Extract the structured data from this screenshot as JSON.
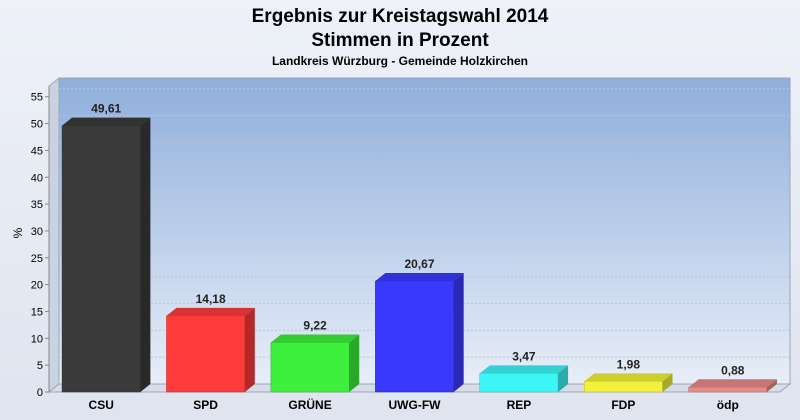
{
  "chart_data": {
    "type": "bar",
    "title": "Ergebnis zur Kreistagswahl 2014",
    "title2": "Stimmen in Prozent",
    "subtitle": "Landkreis Würzburg - Gemeinde Holzkirchen",
    "ylabel": "%",
    "xlabel": "",
    "ylim": [
      0,
      57
    ],
    "yticks": [
      0,
      5,
      10,
      15,
      20,
      25,
      30,
      35,
      40,
      45,
      50,
      55
    ],
    "grid": true,
    "categories": [
      "CSU",
      "SPD",
      "GRÜNE",
      "UWG-FW",
      "REP",
      "FDP",
      "ödp"
    ],
    "values": [
      49.61,
      14.18,
      9.22,
      20.67,
      3.47,
      1.98,
      0.88
    ],
    "value_labels": [
      "49,61",
      "14,18",
      "9,22",
      "20,67",
      "3,47",
      "1,98",
      "0,88"
    ],
    "colors": [
      "#3a3a3a",
      "#ff3b3b",
      "#3cf03c",
      "#3a3aff",
      "#3cf6f6",
      "#f2f23a",
      "#e88a8a"
    ]
  }
}
